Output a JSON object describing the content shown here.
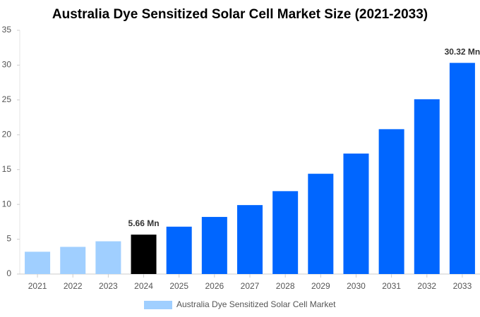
{
  "chart_data": {
    "type": "bar",
    "title": "Australia Dye Sensitized Solar Cell Market Size (2021-2033)",
    "categories": [
      "2021",
      "2022",
      "2023",
      "2024",
      "2025",
      "2026",
      "2027",
      "2028",
      "2029",
      "2030",
      "2031",
      "2032",
      "2033"
    ],
    "series": [
      {
        "name": "Australia Dye Sensitized Solar Cell Market",
        "color": "#a0cfff",
        "values": [
          3.2,
          3.9,
          4.7,
          5.66,
          6.8,
          8.2,
          9.9,
          11.9,
          14.4,
          17.3,
          20.8,
          25.1,
          30.32
        ],
        "value_labels": [
          null,
          null,
          null,
          "5.66 Mn",
          null,
          null,
          null,
          null,
          null,
          null,
          null,
          null,
          "30.32 Mn"
        ],
        "colors": [
          "#a0cfff",
          "#a0cfff",
          "#a0cfff",
          "#000000",
          "#0066ff",
          "#0066ff",
          "#0066ff",
          "#0066ff",
          "#0066ff",
          "#0066ff",
          "#0066ff",
          "#0066ff",
          "#0066ff"
        ]
      }
    ],
    "ylim": [
      0,
      35
    ],
    "yticks": [
      0,
      5,
      10,
      15,
      20,
      25,
      30,
      35
    ],
    "grid": false
  }
}
